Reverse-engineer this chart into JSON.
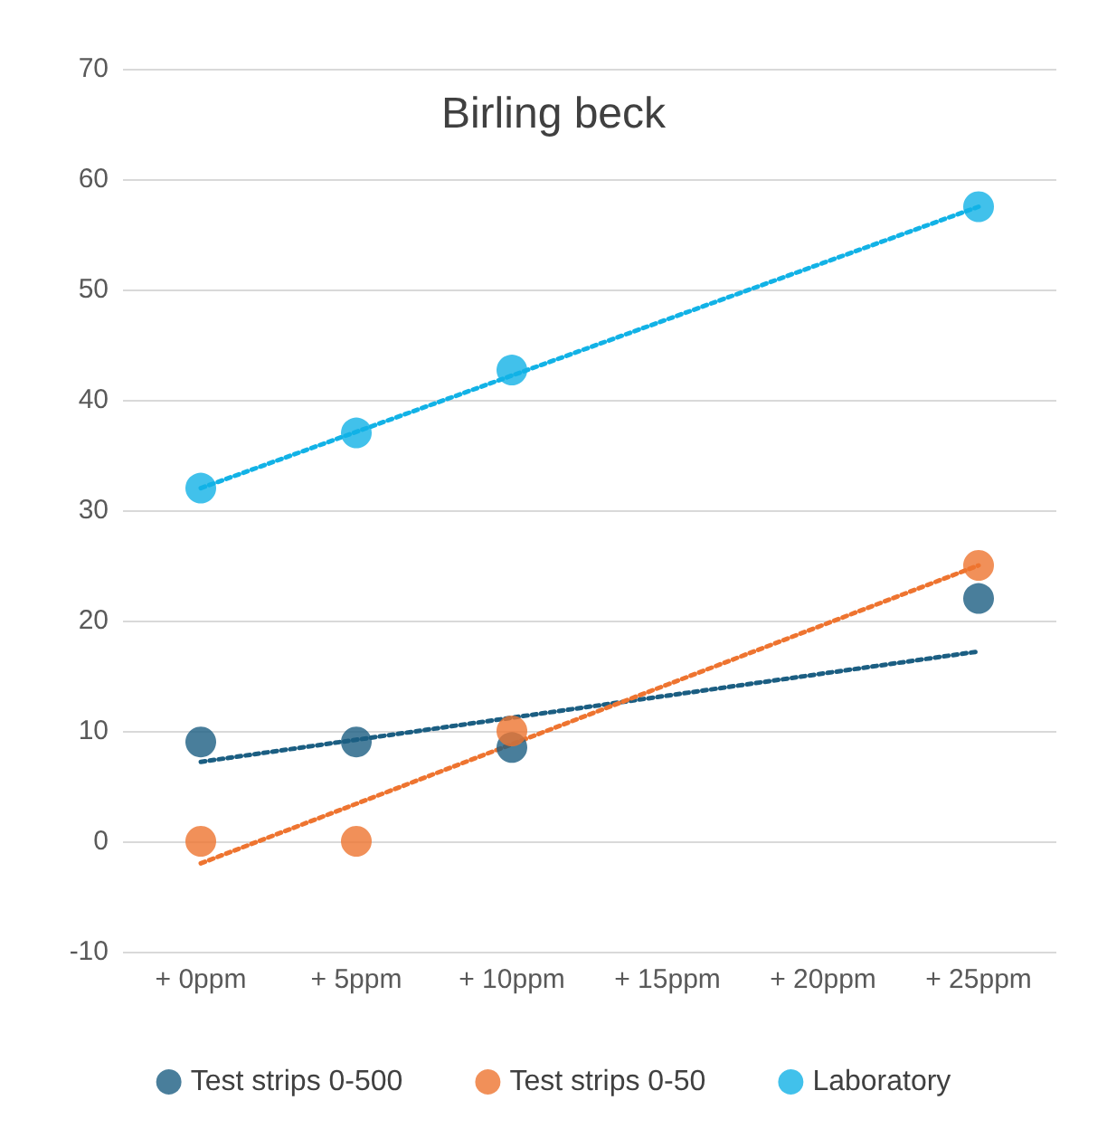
{
  "chart_data": {
    "type": "scatter",
    "title": "Birling beck",
    "categories": [
      "+ 0ppm",
      "+ 5ppm",
      "+ 10ppm",
      "+ 15ppm",
      "+ 20ppm",
      "+ 25ppm"
    ],
    "ylim": [
      -10,
      70
    ],
    "yticks": [
      -10,
      0,
      10,
      20,
      30,
      40,
      50,
      60,
      70
    ],
    "grid": "y",
    "legend": "bottom",
    "marker": "circle",
    "series": [
      {
        "name": "Test strips 0-500",
        "color": "#1b5e82",
        "values": [
          9,
          9,
          8.5,
          null,
          null,
          22
        ]
      },
      {
        "name": "Test strips 0-50",
        "color": "#ee7430",
        "values": [
          0,
          0,
          10,
          null,
          null,
          25
        ]
      },
      {
        "name": "Laboratory",
        "color": "#12b2e6",
        "values": [
          32,
          37,
          42.7,
          null,
          null,
          57.5
        ]
      },
      {
        "type": "line",
        "color": "#1b5e82",
        "marker": "none",
        "line_style": "dotted",
        "values": [
          7.2,
          9.2,
          11.2,
          13.2,
          15.2,
          17.2
        ]
      },
      {
        "type": "line",
        "color": "#ee7430",
        "marker": "none",
        "line_style": "dotted",
        "values": [
          -2,
          3.4,
          8.8,
          14.2,
          19.6,
          25
        ]
      },
      {
        "type": "line",
        "color": "#12b2e6",
        "marker": "none",
        "line_style": "dotted",
        "values": [
          32,
          37.1,
          42.2,
          47.3,
          52.4,
          57.5
        ]
      }
    ]
  }
}
